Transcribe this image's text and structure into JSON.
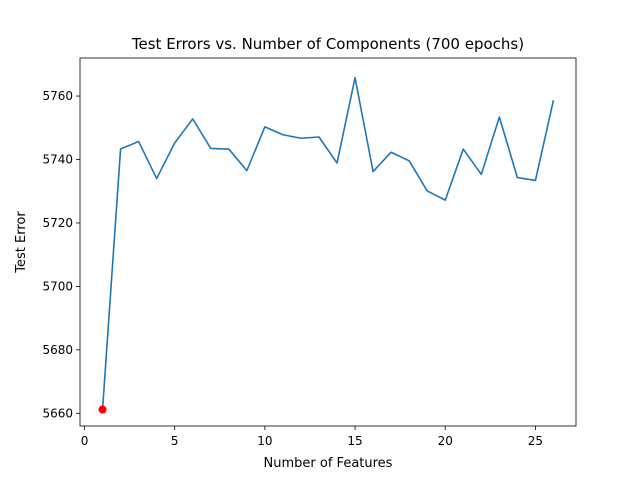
{
  "chart_data": {
    "type": "line",
    "title": "Test Errors vs. Number of Components (700 epochs)",
    "xlabel": "Number of Features",
    "ylabel": "Test Error",
    "xlim": [
      -0.25,
      27.25
    ],
    "ylim": [
      5656,
      5772
    ],
    "xticks": [
      0,
      5,
      10,
      15,
      20,
      25
    ],
    "yticks": [
      5660,
      5680,
      5700,
      5720,
      5740,
      5760
    ],
    "grid": false,
    "series": [
      {
        "color": "#1f77b4",
        "x": [
          1,
          2,
          3,
          4,
          5,
          6,
          7,
          8,
          9,
          10,
          11,
          12,
          13,
          14,
          15,
          16,
          17,
          18,
          19,
          20,
          21,
          22,
          23,
          24,
          25,
          26
        ],
        "y": [
          5661.2,
          5743.3,
          5745.7,
          5734.0,
          5745.2,
          5752.8,
          5743.5,
          5743.3,
          5736.5,
          5750.3,
          5747.8,
          5746.7,
          5747.1,
          5738.9,
          5765.8,
          5736.2,
          5742.3,
          5739.6,
          5730.1,
          5727.2,
          5743.3,
          5735.3,
          5753.4,
          5734.3,
          5733.4,
          5758.7
        ]
      }
    ],
    "highlight_point": {
      "x": 1,
      "y": 5661.2,
      "color": "#ff0000"
    }
  }
}
